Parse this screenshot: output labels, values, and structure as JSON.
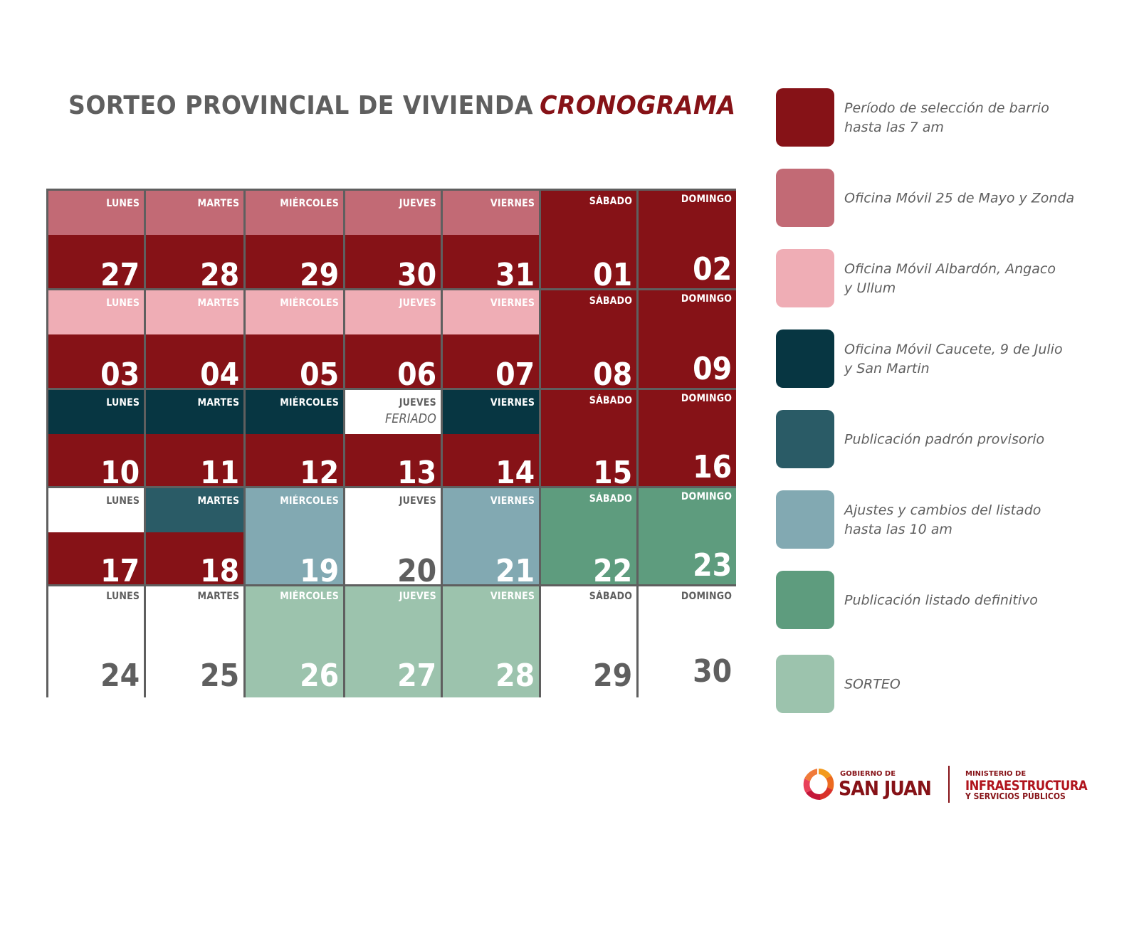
{
  "header": {
    "title": "SORTEO PROVINCIAL DE VIVIENDA",
    "title_accent": "CRONOGRAMA"
  },
  "colors": {
    "seleccion": "#861217",
    "movil_25mayo": "#c26a75",
    "movil_albardon": "#efadb5",
    "movil_caucete": "#073642",
    "padron": "#2a5b66",
    "ajustes": "#82a9b2",
    "definitivo": "#5e9c7e",
    "sorteo": "#9cc3ad",
    "white": "#ffffff",
    "text_light": "#ffffff",
    "text_dark": "#5f5f5f"
  },
  "calendar": {
    "weeks": [
      [
        {
          "day": "LUNES",
          "num": "27",
          "top": "movil_25mayo",
          "bottom": "seleccion"
        },
        {
          "day": "MARTES",
          "num": "28",
          "top": "movil_25mayo",
          "bottom": "seleccion"
        },
        {
          "day": "MIÉRCOLES",
          "num": "29",
          "top": "movil_25mayo",
          "bottom": "seleccion"
        },
        {
          "day": "JUEVES",
          "num": "30",
          "top": "movil_25mayo",
          "bottom": "seleccion"
        },
        {
          "day": "VIERNES",
          "num": "31",
          "top": "movil_25mayo",
          "bottom": "seleccion"
        },
        {
          "day": "SÁBADO",
          "num": "01",
          "top": null,
          "bottom": "seleccion"
        },
        {
          "day": "DOMINGO",
          "num": "02",
          "top": null,
          "bottom": "seleccion"
        }
      ],
      [
        {
          "day": "LUNES",
          "num": "03",
          "top": "movil_albardon",
          "bottom": "seleccion"
        },
        {
          "day": "MARTES",
          "num": "04",
          "top": "movil_albardon",
          "bottom": "seleccion"
        },
        {
          "day": "MIÉRCOLES",
          "num": "05",
          "top": "movil_albardon",
          "bottom": "seleccion"
        },
        {
          "day": "JUEVES",
          "num": "06",
          "top": "movil_albardon",
          "bottom": "seleccion"
        },
        {
          "day": "VIERNES",
          "num": "07",
          "top": "movil_albardon",
          "bottom": "seleccion"
        },
        {
          "day": "SÁBADO",
          "num": "08",
          "top": null,
          "bottom": "seleccion"
        },
        {
          "day": "DOMINGO",
          "num": "09",
          "top": null,
          "bottom": "seleccion"
        }
      ],
      [
        {
          "day": "LUNES",
          "num": "10",
          "top": "movil_caucete",
          "bottom": "seleccion"
        },
        {
          "day": "MARTES",
          "num": "11",
          "top": "movil_caucete",
          "bottom": "seleccion"
        },
        {
          "day": "MIÉRCOLES",
          "num": "12",
          "top": "movil_caucete",
          "bottom": "seleccion"
        },
        {
          "day": "JUEVES",
          "num": "13",
          "top": "white",
          "bottom": "seleccion",
          "note": "FERIADO"
        },
        {
          "day": "VIERNES",
          "num": "14",
          "top": "movil_caucete",
          "bottom": "seleccion"
        },
        {
          "day": "SÁBADO",
          "num": "15",
          "top": null,
          "bottom": "seleccion"
        },
        {
          "day": "DOMINGO",
          "num": "16",
          "top": null,
          "bottom": "seleccion"
        }
      ],
      [
        {
          "day": "LUNES",
          "num": "17",
          "top": "white",
          "bottom": "seleccion"
        },
        {
          "day": "MARTES",
          "num": "18",
          "top": "padron",
          "bottom": "seleccion"
        },
        {
          "day": "MIÉRCOLES",
          "num": "19",
          "top": null,
          "bottom": "ajustes"
        },
        {
          "day": "JUEVES",
          "num": "20",
          "top": null,
          "bottom": "white"
        },
        {
          "day": "VIERNES",
          "num": "21",
          "top": null,
          "bottom": "ajustes"
        },
        {
          "day": "SÁBADO",
          "num": "22",
          "top": null,
          "bottom": "definitivo"
        },
        {
          "day": "DOMINGO",
          "num": "23",
          "top": null,
          "bottom": "definitivo"
        }
      ],
      [
        {
          "day": "LUNES",
          "num": "24",
          "top": null,
          "bottom": "white"
        },
        {
          "day": "MARTES",
          "num": "25",
          "top": null,
          "bottom": "white"
        },
        {
          "day": "MIÉRCOLES",
          "num": "26",
          "top": null,
          "bottom": "sorteo"
        },
        {
          "day": "JUEVES",
          "num": "27",
          "top": null,
          "bottom": "sorteo"
        },
        {
          "day": "VIERNES",
          "num": "28",
          "top": null,
          "bottom": "sorteo"
        },
        {
          "day": "SÁBADO",
          "num": "29",
          "top": null,
          "bottom": "white"
        },
        {
          "day": "DOMINGO",
          "num": "30",
          "top": null,
          "bottom": "white"
        }
      ]
    ]
  },
  "legend": {
    "items": [
      {
        "key": "seleccion",
        "label": "Período de selección de barrio\nhasta las 7 am"
      },
      {
        "key": "movil_25mayo",
        "label": "Oficina Móvil 25 de Mayo y Zonda"
      },
      {
        "key": "movil_albardon",
        "label": "Oficina Móvil Albardón, Angaco\ny Ullum"
      },
      {
        "key": "movil_caucete",
        "label": "Oficina Móvil Caucete, 9 de Julio\ny San Martin"
      },
      {
        "key": "padron",
        "label": "Publicación padrón provisorio"
      },
      {
        "key": "ajustes",
        "label": "Ajustes y cambios del listado\nhasta las 10 am"
      },
      {
        "key": "definitivo",
        "label": "Publicación listado definitivo"
      },
      {
        "key": "sorteo",
        "label": " SORTEO"
      }
    ]
  },
  "footer": {
    "gob_small": "GOBIERNO DE",
    "gob_big": "SAN JUAN",
    "min_small": "MINISTERIO DE",
    "min_big": "INFRAESTRUCTURA",
    "min_sub": "Y SERVICIOS PÚBLICOS"
  }
}
